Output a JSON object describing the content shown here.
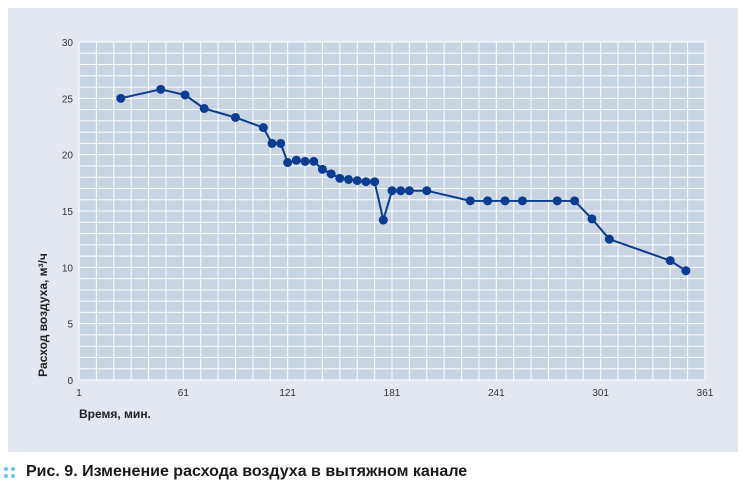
{
  "figure": {
    "caption_label": "Рис. 9.",
    "caption_text": "Изменение расхода воздуха в вытяжном канале",
    "accent_color": "#6cc3ea"
  },
  "chart_data": {
    "type": "line",
    "title": "",
    "xlabel": "Время, мин.",
    "ylabel": "Расход воздуха, м³/ч",
    "xlim": [
      1,
      361
    ],
    "ylim": [
      0,
      30
    ],
    "xticks": [
      1,
      61,
      121,
      181,
      241,
      301,
      361
    ],
    "yticks": [
      0,
      5,
      10,
      15,
      20,
      25,
      30
    ],
    "grid": true,
    "legend": "none",
    "series": [
      {
        "color": "#0a3d91",
        "points": [
          [
            25,
            25.0
          ],
          [
            48,
            25.8
          ],
          [
            62,
            25.3
          ],
          [
            73,
            24.1
          ],
          [
            91,
            23.3
          ],
          [
            107,
            22.4
          ],
          [
            112,
            21.0
          ],
          [
            117,
            21.0
          ],
          [
            121,
            19.3
          ],
          [
            126,
            19.5
          ],
          [
            131,
            19.4
          ],
          [
            136,
            19.4
          ],
          [
            141,
            18.7
          ],
          [
            146,
            18.3
          ],
          [
            151,
            17.9
          ],
          [
            156,
            17.8
          ],
          [
            161,
            17.7
          ],
          [
            166,
            17.6
          ],
          [
            171,
            17.6
          ],
          [
            176,
            14.2
          ],
          [
            181,
            16.8
          ],
          [
            186,
            16.8
          ],
          [
            191,
            16.8
          ],
          [
            201,
            16.8
          ],
          [
            226,
            15.9
          ],
          [
            236,
            15.9
          ],
          [
            246,
            15.9
          ],
          [
            256,
            15.9
          ],
          [
            276,
            15.9
          ],
          [
            286,
            15.9
          ],
          [
            296,
            14.3
          ],
          [
            306,
            12.5
          ],
          [
            341,
            10.6
          ],
          [
            350,
            9.7
          ]
        ]
      }
    ]
  }
}
